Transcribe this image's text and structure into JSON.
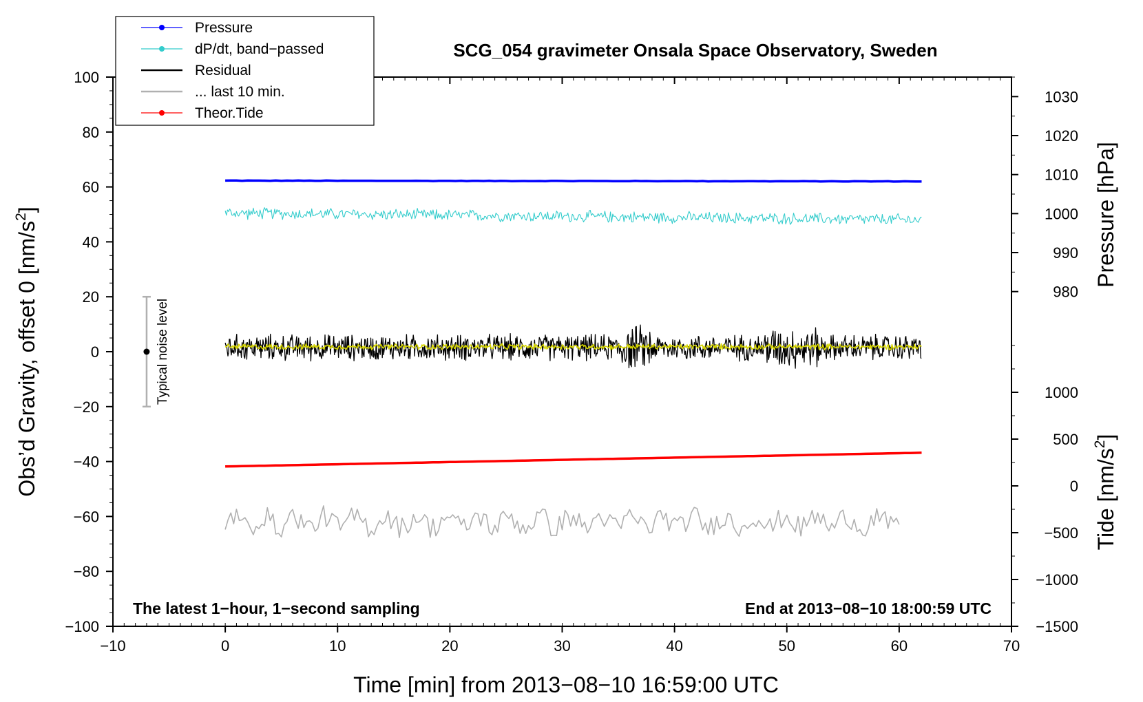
{
  "chart_data": {
    "type": "line",
    "title": "SCG_054 gravimeter Onsala Space Observatory, Sweden",
    "xlabel": "Time [min] from 2013−08−10 16:59:00 UTC",
    "ylabel_main": "Obs’d Gravity, offset 0 [nm/s",
    "ylabel_sup": "2",
    "ylabel_end": "]",
    "ylabel_pressure": "Pressure [hPa]",
    "ylabel_tide": "Tide [nm/s",
    "ylabel_tide_sup": "2",
    "ylabel_tide_end": "]",
    "xlim": [
      -10,
      70
    ],
    "ylim": [
      -100,
      100
    ],
    "pressure_lim": [
      975,
      1035
    ],
    "tide_lim": [
      -1500,
      1500
    ],
    "x_ticks": [
      "−10",
      "0",
      "10",
      "20",
      "30",
      "40",
      "50",
      "60",
      "70"
    ],
    "x_tick_values": [
      -10,
      0,
      10,
      20,
      30,
      40,
      50,
      60,
      70
    ],
    "y_ticks": [
      "100",
      "80",
      "60",
      "40",
      "20",
      "0",
      "−20",
      "−40",
      "−60",
      "−80",
      "−100"
    ],
    "y_tick_values": [
      100,
      80,
      60,
      40,
      20,
      0,
      -20,
      -40,
      -60,
      -80,
      -100
    ],
    "pressure_ticks": [
      "1030",
      "1020",
      "1010",
      "1000",
      "990",
      "980"
    ],
    "pressure_tick_values": [
      1030,
      1020,
      1010,
      1000,
      990,
      980
    ],
    "tide_ticks": [
      "1000",
      "500",
      "0",
      "−500",
      "−1000",
      "−1500"
    ],
    "tide_tick_values": [
      1000,
      500,
      0,
      -500,
      -1000,
      -1500
    ],
    "note_left": "The latest 1−hour, 1−second sampling",
    "note_right": "End at 2013−08−10 18:00:59 UTC",
    "noise_label": "Typical noise level",
    "noise_bar": {
      "x": -7,
      "center": 0,
      "low": -20,
      "high": 20
    },
    "legend": [
      {
        "name": "Pressure",
        "color": "#0000ff",
        "marker": true
      },
      {
        "name": "dP/dt, band−passed",
        "color": "#33cccc",
        "marker": true
      },
      {
        "name": "Residual",
        "color": "#000000",
        "marker": false
      },
      {
        "name": "... last 10 min.",
        "color": "#b0b0b0",
        "marker": false
      },
      {
        "name": "Theor.Tide",
        "color": "#ff0000",
        "marker": true
      }
    ],
    "series": [
      {
        "name": "Pressure",
        "color": "#0000ff",
        "x_range": [
          0,
          62
        ],
        "y_start": 62.3,
        "y_end": 62.0,
        "noise_amplitude": 0.1
      },
      {
        "name": "dP/dt, band−passed",
        "color": "#33cccc",
        "x_range": [
          0,
          62
        ],
        "y_start": 50.5,
        "y_end": 48.0,
        "noise_amplitude": 2.5
      },
      {
        "name": "Residual",
        "color": "#000000",
        "x_range": [
          0,
          62
        ],
        "y_start": 1.5,
        "y_end": 1.5,
        "noise_amplitude": 5.5
      },
      {
        "name": "Residual (smoothed)",
        "color": "#d6d600",
        "x_range": [
          0,
          62
        ],
        "y_start": 1.8,
        "y_end": 1.8,
        "noise_amplitude": 1.2
      },
      {
        "name": "... last 10 min.",
        "color": "#b0b0b0",
        "x_range": [
          0,
          60
        ],
        "y_start": -62,
        "y_end": -62,
        "noise_amplitude": 6
      },
      {
        "name": "Theor.Tide",
        "color": "#ff0000",
        "x_range": [
          0,
          62
        ],
        "y_start": -41.8,
        "y_end": -36.8,
        "noise_amplitude": 0
      }
    ]
  }
}
